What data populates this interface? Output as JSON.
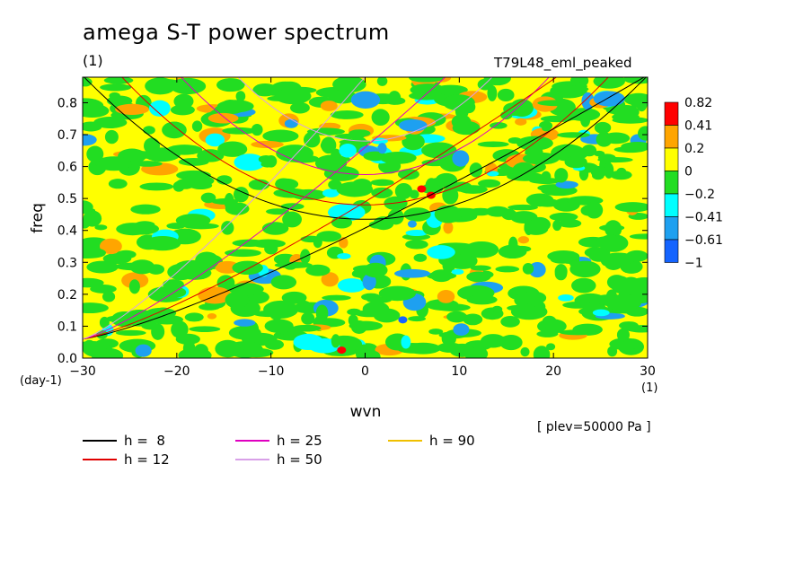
{
  "title": "amega S-T power spectrum",
  "subtitle_left": "(1)",
  "subtitle_right": "T79L48_eml_peaked",
  "plev_note": "[ plev=50000 Pa ]",
  "x_unit": "(1)",
  "y_unit": "(day-1)",
  "chart_data": {
    "type": "heatmap",
    "xlabel": "wvn",
    "ylabel": "freq",
    "xlim": [
      -30,
      30
    ],
    "ylim": [
      0,
      0.88
    ],
    "xticks": [
      -30,
      -20,
      -10,
      0,
      10,
      20,
      30
    ],
    "xtick_labels": [
      "−30",
      "−20",
      "−10",
      "0",
      "10",
      "20",
      "30"
    ],
    "yticks": [
      0,
      0.1,
      0.2,
      0.3,
      0.4,
      0.5,
      0.6,
      0.7,
      0.8
    ],
    "ytick_labels": [
      "0.0",
      "0.1",
      "0.2",
      "0.3",
      "0.4",
      "0.5",
      "0.6",
      "0.7",
      "0.8"
    ],
    "colorbar": {
      "levels": [
        "0.82",
        "0.41",
        "0.2",
        "0",
        "−0.2",
        "−0.41",
        "−0.61",
        "−1"
      ],
      "colors": [
        "#ff0000",
        "#ffa500",
        "#ffff00",
        "#22dd22",
        "#00ffff",
        "#1ea0f0",
        "#1464ff"
      ]
    },
    "dominant_fill": "#ffff00",
    "dispersion_curves": [
      {
        "label": "h =  8",
        "h": 8,
        "color": "#000000"
      },
      {
        "label": "h = 12",
        "h": 12,
        "color": "#e00000"
      },
      {
        "label": "h = 25",
        "h": 25,
        "color": "#e000c0"
      },
      {
        "label": "h = 50",
        "h": 50,
        "color": "#d8a0e8"
      },
      {
        "label": "h = 90",
        "h": 90,
        "color": "#f0c000"
      }
    ]
  }
}
